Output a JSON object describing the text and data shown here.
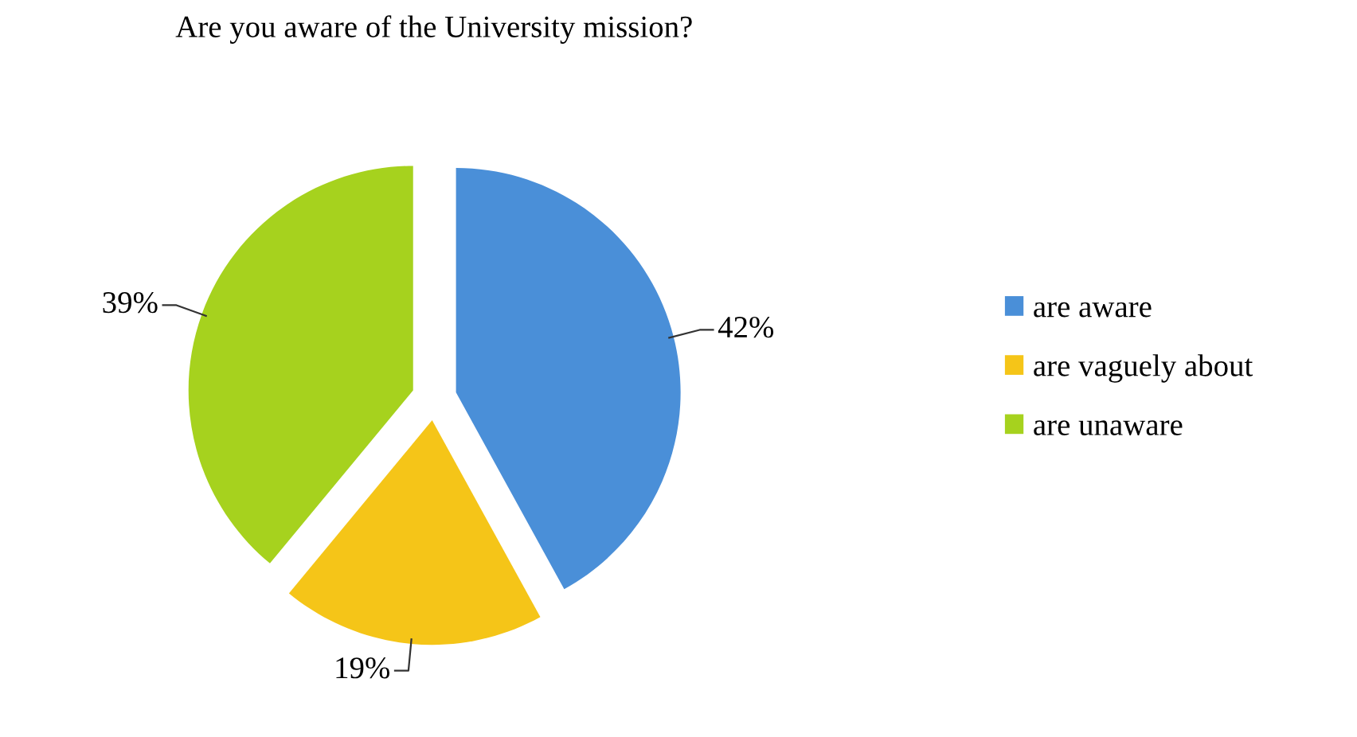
{
  "chart_data": {
    "type": "pie",
    "title": "Are you aware of the University mission?",
    "categories": [
      "are aware",
      "are vaguely about",
      "are unaware"
    ],
    "values": [
      42,
      19,
      39
    ],
    "colors": [
      "#4a8fd8",
      "#f5c518",
      "#a6d21e"
    ],
    "value_labels": [
      "42%",
      "19%",
      "39%"
    ],
    "legend": "right"
  }
}
